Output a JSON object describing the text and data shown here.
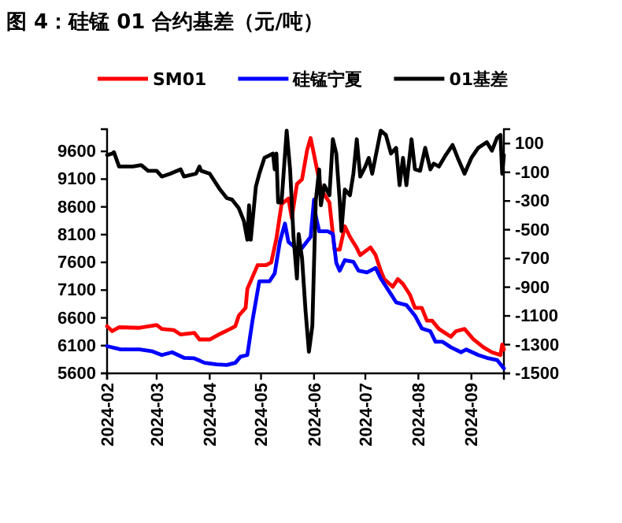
{
  "chart_data": {
    "type": "line",
    "title": "图 4：硅锰 01 合约基差（元/吨）",
    "xlim": [
      "2024-02-01",
      "2024-09-20"
    ],
    "xticks": [
      {
        "value": "2024-02-01",
        "label": "2024-02"
      },
      {
        "value": "2024-03-01",
        "label": "2024-03"
      },
      {
        "value": "2024-04-01",
        "label": "2024-04"
      },
      {
        "value": "2024-05-01",
        "label": "2024-05"
      },
      {
        "value": "2024-06-01",
        "label": "2024-06"
      },
      {
        "value": "2024-07-01",
        "label": "2024-07"
      },
      {
        "value": "2024-08-01",
        "label": "2024-08"
      },
      {
        "value": "2024-09-01",
        "label": "2024-09"
      }
    ],
    "ylim": [
      5600,
      10000
    ],
    "yticks": [
      5600,
      6100,
      6600,
      7100,
      7600,
      8100,
      8600,
      9100,
      9600
    ],
    "y2lim": [
      -1500,
      200
    ],
    "y2ticks": [
      -1500,
      -1300,
      -1100,
      -900,
      -700,
      -500,
      -300,
      -100,
      100
    ],
    "legend": "top",
    "grid": false,
    "series": [
      {
        "name": "SM01",
        "color": "#ff0000",
        "x": [
          "2024-02-01",
          "2024-02-04",
          "2024-02-08",
          "2024-02-20",
          "2024-03-01",
          "2024-03-04",
          "2024-03-11",
          "2024-03-15",
          "2024-03-23",
          "2024-03-26",
          "2024-04-01",
          "2024-04-07",
          "2024-04-13",
          "2024-04-16",
          "2024-04-18",
          "2024-04-22",
          "2024-04-23",
          "2024-04-29",
          "2024-05-04",
          "2024-05-07",
          "2024-05-10",
          "2024-05-13",
          "2024-05-17",
          "2024-05-19",
          "2024-05-22",
          "2024-05-25",
          "2024-05-28",
          "2024-05-30",
          "2024-06-02",
          "2024-06-05",
          "2024-06-10",
          "2024-06-13",
          "2024-06-16",
          "2024-06-19",
          "2024-06-22",
          "2024-06-26",
          "2024-06-28",
          "2024-07-04",
          "2024-07-07",
          "2024-07-10",
          "2024-07-12",
          "2024-07-17",
          "2024-07-20",
          "2024-07-23",
          "2024-07-27",
          "2024-07-30",
          "2024-08-03",
          "2024-08-06",
          "2024-08-09",
          "2024-08-13",
          "2024-08-20",
          "2024-08-23",
          "2024-08-28",
          "2024-09-02",
          "2024-09-08",
          "2024-09-13",
          "2024-09-18",
          "2024-09-19",
          "2024-09-20"
        ],
        "values": [
          6450,
          6360,
          6430,
          6420,
          6470,
          6400,
          6380,
          6300,
          6330,
          6210,
          6210,
          6310,
          6400,
          6450,
          6640,
          6780,
          7120,
          7550,
          7550,
          7600,
          8030,
          8650,
          8750,
          8400,
          9010,
          9100,
          9630,
          9840,
          9390,
          8920,
          8680,
          7830,
          7830,
          8250,
          8060,
          7860,
          7730,
          7870,
          7730,
          7450,
          7300,
          7160,
          7300,
          7210,
          7020,
          6780,
          6780,
          6550,
          6550,
          6400,
          6260,
          6360,
          6400,
          6220,
          6070,
          5980,
          5930,
          6120,
          6030
        ]
      },
      {
        "name": "硅锰宁夏",
        "color": "#0000ff",
        "x": [
          "2024-02-01",
          "2024-02-09",
          "2024-02-20",
          "2024-02-27",
          "2024-03-04",
          "2024-03-10",
          "2024-03-17",
          "2024-03-23",
          "2024-03-29",
          "2024-04-05",
          "2024-04-11",
          "2024-04-16",
          "2024-04-19",
          "2024-04-23",
          "2024-04-26",
          "2024-04-30",
          "2024-05-06",
          "2024-05-09",
          "2024-05-12",
          "2024-05-15",
          "2024-05-17",
          "2024-05-21",
          "2024-05-25",
          "2024-05-30",
          "2024-06-01",
          "2024-06-02",
          "2024-06-04",
          "2024-06-09",
          "2024-06-12",
          "2024-06-14",
          "2024-06-16",
          "2024-06-19",
          "2024-06-24",
          "2024-06-27",
          "2024-07-02",
          "2024-07-07",
          "2024-07-10",
          "2024-07-14",
          "2024-07-19",
          "2024-07-25",
          "2024-07-30",
          "2024-08-03",
          "2024-08-08",
          "2024-08-11",
          "2024-08-15",
          "2024-08-20",
          "2024-08-26",
          "2024-08-29",
          "2024-09-05",
          "2024-09-11",
          "2024-09-16",
          "2024-09-20"
        ],
        "values": [
          6090,
          6030,
          6030,
          6000,
          5930,
          5980,
          5880,
          5870,
          5790,
          5760,
          5750,
          5790,
          5900,
          5930,
          6550,
          7260,
          7260,
          7400,
          7970,
          8300,
          7970,
          7870,
          7860,
          8060,
          8730,
          8440,
          8160,
          8160,
          8110,
          7590,
          7450,
          7640,
          7610,
          7450,
          7420,
          7500,
          7310,
          7120,
          6880,
          6830,
          6640,
          6410,
          6360,
          6170,
          6170,
          6070,
          5980,
          6030,
          5930,
          5870,
          5840,
          5690
        ]
      },
      {
        "name": "01基差",
        "color": "#000000",
        "axis": "y2",
        "x": [
          "2024-02-01",
          "2024-02-04",
          "2024-02-05",
          "2024-02-08",
          "2024-02-16",
          "2024-02-21",
          "2024-02-25",
          "2024-03-01",
          "2024-03-04",
          "2024-03-09",
          "2024-03-15",
          "2024-03-17",
          "2024-03-24",
          "2024-03-26",
          "2024-03-27",
          "2024-04-01",
          "2024-04-07",
          "2024-04-11",
          "2024-04-14",
          "2024-04-18",
          "2024-04-21",
          "2024-04-23",
          "2024-04-24",
          "2024-04-25",
          "2024-04-28",
          "2024-04-30",
          "2024-05-03",
          "2024-05-08",
          "2024-05-09",
          "2024-05-10",
          "2024-05-11",
          "2024-05-13",
          "2024-05-16",
          "2024-05-18",
          "2024-05-20",
          "2024-05-22",
          "2024-05-23",
          "2024-05-25",
          "2024-05-27",
          "2024-05-29",
          "2024-05-31",
          "2024-06-02",
          "2024-06-04",
          "2024-06-05",
          "2024-06-07",
          "2024-06-10",
          "2024-06-12",
          "2024-06-14",
          "2024-06-16",
          "2024-06-17",
          "2024-06-19",
          "2024-06-22",
          "2024-06-24",
          "2024-06-26",
          "2024-06-28",
          "2024-07-01",
          "2024-07-03",
          "2024-07-05",
          "2024-07-08",
          "2024-07-10",
          "2024-07-13",
          "2024-07-16",
          "2024-07-19",
          "2024-07-21",
          "2024-07-23",
          "2024-07-25",
          "2024-07-28",
          "2024-07-30",
          "2024-08-02",
          "2024-08-05",
          "2024-08-08",
          "2024-08-10",
          "2024-08-13",
          "2024-08-17",
          "2024-08-21",
          "2024-08-24",
          "2024-08-28",
          "2024-09-01",
          "2024-09-05",
          "2024-09-10",
          "2024-09-13",
          "2024-09-16",
          "2024-09-18",
          "2024-09-19",
          "2024-09-20"
        ],
        "values": [
          20,
          30,
          40,
          -60,
          -60,
          -50,
          -90,
          -90,
          -130,
          -110,
          -80,
          -130,
          -110,
          -60,
          -90,
          -110,
          -220,
          -280,
          -290,
          -350,
          -440,
          -570,
          -330,
          -570,
          -200,
          -110,
          0,
          30,
          -80,
          30,
          -310,
          -310,
          190,
          -80,
          -550,
          -840,
          -530,
          -700,
          -1060,
          -1350,
          -1170,
          -300,
          -80,
          -330,
          -190,
          -260,
          130,
          30,
          -300,
          -510,
          -220,
          -260,
          -110,
          130,
          -130,
          -60,
          0,
          -110,
          70,
          190,
          160,
          30,
          70,
          -190,
          0,
          -190,
          130,
          -80,
          -90,
          70,
          -80,
          -40,
          -60,
          20,
          90,
          0,
          -110,
          0,
          70,
          110,
          50,
          140,
          160,
          -110,
          20
        ]
      }
    ]
  }
}
